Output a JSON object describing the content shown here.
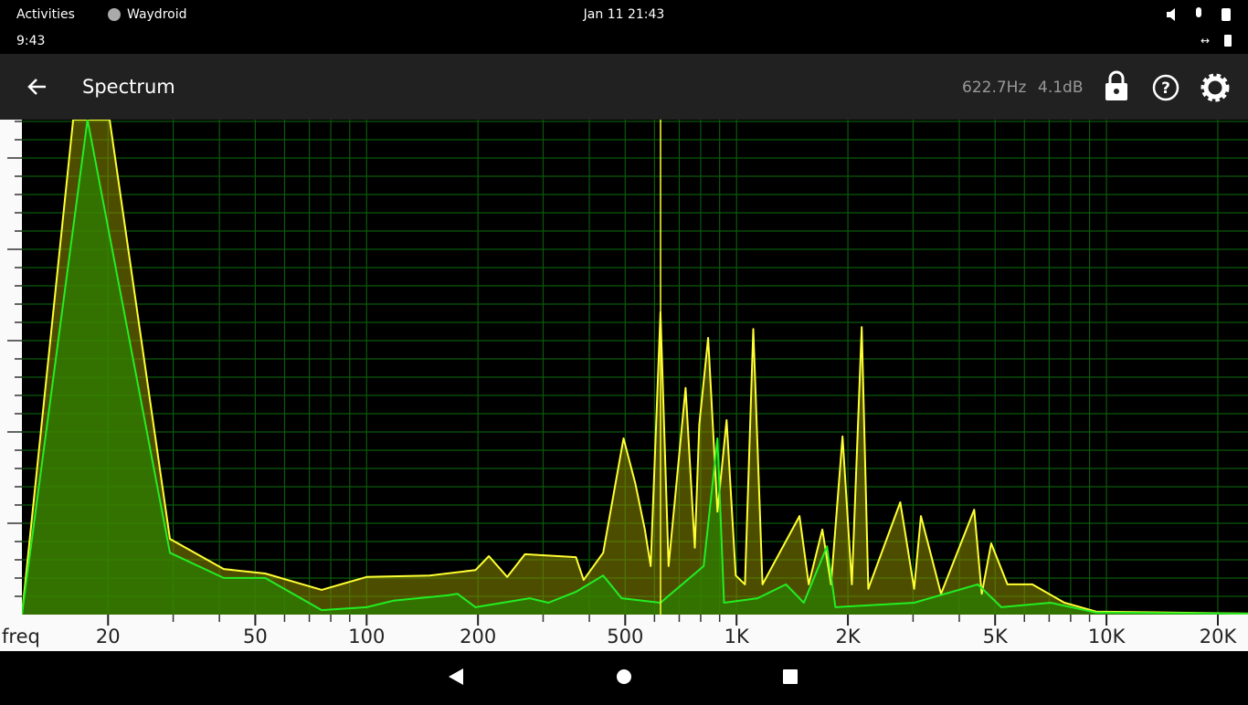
{
  "system_bar": {
    "activities": "Activities",
    "app": "Waydroid",
    "clock": "Jan 11  21:43"
  },
  "android_status": {
    "time": "9:43"
  },
  "app_bar": {
    "title": "Spectrum",
    "frequency": "622.7Hz",
    "level": "4.1dB"
  },
  "chart_data": {
    "type": "line",
    "x_label": "freq",
    "xscale": "log",
    "xlim": [
      11.7,
      24130
    ],
    "ylim": [
      0,
      100
    ],
    "xticks": [
      20,
      50,
      100,
      200,
      500,
      {
        "value": 1000,
        "label": "1K"
      },
      {
        "value": 2000,
        "label": "2K"
      },
      {
        "value": 5000,
        "label": "5K"
      },
      {
        "value": 10000,
        "label": "10K"
      },
      {
        "value": 20000,
        "label": "20K"
      }
    ],
    "xgrid": [
      20,
      30,
      40,
      50,
      60,
      70,
      80,
      90,
      100,
      200,
      300,
      400,
      500,
      600,
      700,
      800,
      900,
      1000,
      2000,
      3000,
      4000,
      5000,
      6000,
      7000,
      8000,
      9000,
      10000,
      20000
    ],
    "series": [
      {
        "color": "#ffff33",
        "x": [
          11.7,
          16.1,
          20.2,
          29.4,
          41.1,
          53.2,
          75.6,
          100,
          148,
          197,
          214,
          240,
          268,
          368,
          386,
          436,
          495,
          533,
          565,
          586,
          622.7,
          655,
          728,
          771,
          793,
          838,
          888,
          940,
          995,
          1054,
          1110,
          1175,
          1480,
          1567,
          1706,
          1800,
          1934,
          2050,
          2180,
          2270,
          2770,
          3020,
          3150,
          3570,
          4390,
          4600,
          4880,
          5400,
          6300,
          7700,
          9380,
          24130
        ],
        "values": [
          0,
          100,
          100,
          15.3,
          9.2,
          8.3,
          5.0,
          7.6,
          7.9,
          9.0,
          11.8,
          7.6,
          12.2,
          11.6,
          7.0,
          12.5,
          35.6,
          26.4,
          17.2,
          9.8,
          61.1,
          9.8,
          45.8,
          13.5,
          38.4,
          55.9,
          20.8,
          39.3,
          7.9,
          6.1,
          57.7,
          6.1,
          19.9,
          6.1,
          17.2,
          6.1,
          36.0,
          6.1,
          58.1,
          5.2,
          22.7,
          5.2,
          19.9,
          4.2,
          21.2,
          4.2,
          14.4,
          6.1,
          6.1,
          2.4,
          0.6,
          0.2
        ]
      },
      {
        "color": "#22ee22",
        "x": [
          11.7,
          17.6,
          29.4,
          41.1,
          53.2,
          75.6,
          100,
          118,
          166,
          176,
          197,
          276,
          310,
          368,
          436,
          489,
          622.7,
          815,
          888,
          925,
          1140,
          1360,
          1520,
          1756,
          1850,
          3020,
          4490,
          5200,
          7070,
          9380,
          24130
        ],
        "values": [
          0,
          100,
          12.5,
          7.4,
          7.4,
          0.9,
          1.5,
          2.8,
          3.9,
          4.2,
          1.5,
          3.3,
          2.4,
          4.6,
          7.9,
          3.3,
          2.4,
          9.8,
          35.6,
          2.4,
          3.3,
          6.1,
          2.4,
          13.8,
          1.5,
          2.4,
          6.1,
          1.5,
          2.4,
          0.4,
          0.2
        ]
      }
    ]
  }
}
